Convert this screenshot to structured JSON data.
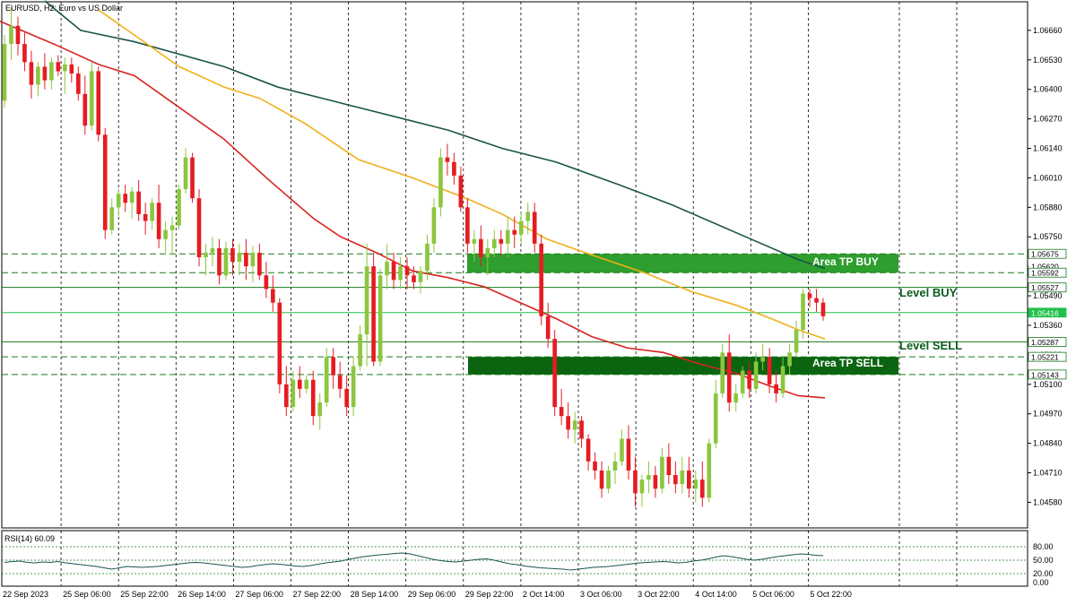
{
  "chart_data": {
    "type": "candlestick",
    "title": "EURUSD, H2:  Euro vs US Dollar",
    "y_ticks": [
      "1.06660",
      "1.06530",
      "1.06400",
      "1.06270",
      "1.06140",
      "1.06010",
      "1.05880",
      "1.05750",
      "1.05620",
      "1.05490",
      "1.05360",
      "1.05230",
      "1.05100",
      "1.04970",
      "1.04840",
      "1.04710",
      "1.04580"
    ],
    "y_tick_values": [
      1.0666,
      1.0653,
      1.064,
      1.0627,
      1.0614,
      1.0601,
      1.0588,
      1.0575,
      1.0562,
      1.0549,
      1.0536,
      1.0523,
      1.051,
      1.0497,
      1.0484,
      1.0471,
      1.0458
    ],
    "ylim": [
      1.04467,
      1.06786
    ],
    "x_ticks": [
      "22 Sep 2023",
      "25 Sep 06:00",
      "25 Sep 22:00",
      "26 Sep 14:00",
      "27 Sep 06:00",
      "27 Sep 22:00",
      "28 Sep 14:00",
      "29 Sep 06:00",
      "29 Sep 22:00",
      "2 Oct 14:00",
      "3 Oct 06:00",
      "3 Oct 22:00",
      "4 Oct 14:00",
      "5 Oct 06:00",
      "5 Oct 22:00"
    ],
    "price_levels": [
      {
        "label": "1.05675",
        "value": 1.05675,
        "style": "dashed",
        "color": "#1a7a1a"
      },
      {
        "label": "1.05620",
        "value": 1.0562,
        "style": "none",
        "color": "#1a7a1a"
      },
      {
        "label": "1.05592",
        "value": 1.05592,
        "style": "dashed",
        "color": "#1a7a1a"
      },
      {
        "label": "1.05527",
        "value": 1.05527,
        "style": "solid",
        "color": "#1a7a1a"
      },
      {
        "label": "1.05416",
        "value": 1.05416,
        "style": "solid",
        "color": "#21c24a"
      },
      {
        "label": "1.05287",
        "value": 1.05287,
        "style": "solid",
        "color": "#1a7a1a"
      },
      {
        "label": "1.05221",
        "value": 1.05221,
        "style": "dashed",
        "color": "#1a7a1a"
      },
      {
        "label": "1.05143",
        "value": 1.05143,
        "style": "dashed",
        "color": "#1a7a1a"
      }
    ],
    "zones": [
      {
        "label": "Area TP BUY",
        "top": 1.05675,
        "bottom": 1.05592,
        "color": "#2e9e2e"
      },
      {
        "label": "Area TP SELL",
        "top": 1.05221,
        "bottom": 1.05143,
        "color": "#0a6410"
      }
    ],
    "level_labels": [
      {
        "label": "Level BUY",
        "value": 1.05527
      },
      {
        "label": "Level SELL",
        "value": 1.05287
      }
    ],
    "candles": [
      [
        1.0635,
        1.0664,
        1.0632,
        1.066
      ],
      [
        1.066,
        1.0676,
        1.0653,
        1.0668
      ],
      [
        1.0668,
        1.0672,
        1.0655,
        1.066
      ],
      [
        1.066,
        1.0665,
        1.0648,
        1.0652
      ],
      [
        1.0652,
        1.0657,
        1.0636,
        1.0642
      ],
      [
        1.0642,
        1.0652,
        1.0637,
        1.065
      ],
      [
        1.065,
        1.0656,
        1.064,
        1.0644
      ],
      [
        1.0644,
        1.0654,
        1.064,
        1.0652
      ],
      [
        1.0652,
        1.0655,
        1.0646,
        1.0648
      ],
      [
        1.0648,
        1.0654,
        1.0638,
        1.0651
      ],
      [
        1.0651,
        1.0654,
        1.0643,
        1.0647
      ],
      [
        1.0647,
        1.065,
        1.0635,
        1.0638
      ],
      [
        1.0638,
        1.0646,
        1.062,
        1.0624
      ],
      [
        1.0624,
        1.0652,
        1.0622,
        1.0648
      ],
      [
        1.0648,
        1.065,
        1.0617,
        1.062
      ],
      [
        1.062,
        1.0623,
        1.0574,
        1.0578
      ],
      [
        1.0578,
        1.0592,
        1.0576,
        1.0588
      ],
      [
        1.0588,
        1.0596,
        1.0584,
        1.0594
      ],
      [
        1.0594,
        1.0598,
        1.0586,
        1.059
      ],
      [
        1.059,
        1.0597,
        1.0583,
        1.0595
      ],
      [
        1.0595,
        1.06,
        1.0582,
        1.0585
      ],
      [
        1.0585,
        1.059,
        1.0576,
        1.0582
      ],
      [
        1.0582,
        1.0592,
        1.0578,
        1.059
      ],
      [
        1.059,
        1.0598,
        1.057,
        1.0574
      ],
      [
        1.0574,
        1.0582,
        1.0568,
        1.0578
      ],
      [
        1.0578,
        1.0584,
        1.0567,
        1.058
      ],
      [
        1.058,
        1.0598,
        1.0578,
        1.0596
      ],
      [
        1.0596,
        1.0614,
        1.0594,
        1.061
      ],
      [
        1.061,
        1.0612,
        1.059,
        1.0592
      ],
      [
        1.0592,
        1.0596,
        1.0562,
        1.0566
      ],
      [
        1.0566,
        1.0572,
        1.0558,
        1.0568
      ],
      [
        1.0568,
        1.0575,
        1.0562,
        1.057
      ],
      [
        1.057,
        1.0574,
        1.0554,
        1.0558
      ],
      [
        1.0558,
        1.0573,
        1.0556,
        1.057
      ],
      [
        1.057,
        1.0574,
        1.0558,
        1.0564
      ],
      [
        1.0564,
        1.0572,
        1.0558,
        1.0568
      ],
      [
        1.0568,
        1.0574,
        1.0556,
        1.0562
      ],
      [
        1.0562,
        1.0571,
        1.0555,
        1.0568
      ],
      [
        1.0568,
        1.0572,
        1.0556,
        1.0558
      ],
      [
        1.0558,
        1.0564,
        1.0548,
        1.0552
      ],
      [
        1.0552,
        1.0558,
        1.0542,
        1.0546
      ],
      [
        1.0546,
        1.0548,
        1.0506,
        1.051
      ],
      [
        1.051,
        1.0518,
        1.0496,
        1.05
      ],
      [
        1.05,
        1.0516,
        1.0498,
        1.0512
      ],
      [
        1.0512,
        1.0518,
        1.0504,
        1.0508
      ],
      [
        1.0508,
        1.0514,
        1.0506,
        1.0512
      ],
      [
        1.0512,
        1.0516,
        1.0492,
        1.0496
      ],
      [
        1.0496,
        1.0506,
        1.049,
        1.0502
      ],
      [
        1.0502,
        1.0526,
        1.05,
        1.0522
      ],
      [
        1.0522,
        1.0526,
        1.0508,
        1.0514
      ],
      [
        1.0514,
        1.052,
        1.0504,
        1.0508
      ],
      [
        1.0508,
        1.0514,
        1.0496,
        1.05
      ],
      [
        1.05,
        1.0522,
        1.0496,
        1.0518
      ],
      [
        1.0518,
        1.0536,
        1.0516,
        1.0532
      ],
      [
        1.0532,
        1.0572,
        1.0518,
        1.0562
      ],
      [
        1.0562,
        1.0568,
        1.0518,
        1.052
      ],
      [
        1.052,
        1.0561,
        1.0518,
        1.0558
      ],
      [
        1.0558,
        1.0572,
        1.0552,
        1.0564
      ],
      [
        1.0564,
        1.0568,
        1.0552,
        1.0556
      ],
      [
        1.0556,
        1.0566,
        1.0552,
        1.0562
      ],
      [
        1.0562,
        1.0566,
        1.0552,
        1.0558
      ],
      [
        1.0558,
        1.0562,
        1.0552,
        1.0555
      ],
      [
        1.0555,
        1.0562,
        1.055,
        1.056
      ],
      [
        1.056,
        1.0576,
        1.0556,
        1.0572
      ],
      [
        1.0572,
        1.0592,
        1.0568,
        1.0588
      ],
      [
        1.0588,
        1.0614,
        1.0584,
        1.061
      ],
      [
        1.061,
        1.0616,
        1.0602,
        1.0608
      ],
      [
        1.0608,
        1.0612,
        1.0598,
        1.0602
      ],
      [
        1.0602,
        1.0606,
        1.0586,
        1.0588
      ],
      [
        1.0588,
        1.0592,
        1.0568,
        1.0572
      ],
      [
        1.0572,
        1.0578,
        1.0564,
        1.0574
      ],
      [
        1.0574,
        1.058,
        1.0562,
        1.0566
      ],
      [
        1.0566,
        1.0574,
        1.0558,
        1.057
      ],
      [
        1.057,
        1.0578,
        1.0566,
        1.0574
      ],
      [
        1.0574,
        1.0578,
        1.0566,
        1.0572
      ],
      [
        1.0572,
        1.0584,
        1.0566,
        1.0578
      ],
      [
        1.0578,
        1.0584,
        1.057,
        1.0576
      ],
      [
        1.0576,
        1.0586,
        1.0572,
        1.0582
      ],
      [
        1.0582,
        1.059,
        1.0576,
        1.0586
      ],
      [
        1.0586,
        1.059,
        1.0568,
        1.0572
      ],
      [
        1.0572,
        1.0576,
        1.0536,
        1.054
      ],
      [
        1.054,
        1.0546,
        1.0526,
        1.053
      ],
      [
        1.053,
        1.0534,
        1.0496,
        1.05
      ],
      [
        1.05,
        1.0508,
        1.0492,
        1.0496
      ],
      [
        1.0496,
        1.0502,
        1.0486,
        1.049
      ],
      [
        1.049,
        1.0498,
        1.0484,
        1.0494
      ],
      [
        1.0494,
        1.0496,
        1.0482,
        1.0486
      ],
      [
        1.0486,
        1.0488,
        1.0472,
        1.0476
      ],
      [
        1.0476,
        1.048,
        1.0468,
        1.0472
      ],
      [
        1.0472,
        1.0476,
        1.046,
        1.0464
      ],
      [
        1.0464,
        1.0474,
        1.0462,
        1.0472
      ],
      [
        1.0472,
        1.048,
        1.0466,
        1.0476
      ],
      [
        1.0476,
        1.049,
        1.0474,
        1.0486
      ],
      [
        1.0486,
        1.0492,
        1.0468,
        1.0472
      ],
      [
        1.0472,
        1.0478,
        1.0456,
        1.0462
      ],
      [
        1.0462,
        1.047,
        1.0456,
        1.0468
      ],
      [
        1.0468,
        1.0476,
        1.0462,
        1.047
      ],
      [
        1.047,
        1.0474,
        1.046,
        1.0464
      ],
      [
        1.0464,
        1.0482,
        1.0462,
        1.0478
      ],
      [
        1.0478,
        1.0484,
        1.0466,
        1.047
      ],
      [
        1.047,
        1.0476,
        1.0462,
        1.0466
      ],
      [
        1.0466,
        1.0478,
        1.0462,
        1.0472
      ],
      [
        1.0472,
        1.0478,
        1.046,
        1.0464
      ],
      [
        1.0464,
        1.0472,
        1.0458,
        1.0468
      ],
      [
        1.0468,
        1.0476,
        1.0456,
        1.046
      ],
      [
        1.046,
        1.0486,
        1.0458,
        1.0484
      ],
      [
        1.0484,
        1.0512,
        1.0482,
        1.0506
      ],
      [
        1.0506,
        1.0528,
        1.0504,
        1.0524
      ],
      [
        1.0524,
        1.0532,
        1.0498,
        1.0502
      ],
      [
        1.0502,
        1.051,
        1.0498,
        1.0506
      ],
      [
        1.0506,
        1.0518,
        1.0504,
        1.0516
      ],
      [
        1.0516,
        1.052,
        1.0504,
        1.0508
      ],
      [
        1.0508,
        1.0524,
        1.0506,
        1.052
      ],
      [
        1.052,
        1.0528,
        1.0516,
        1.0522
      ],
      [
        1.0522,
        1.0526,
        1.0506,
        1.051
      ],
      [
        1.051,
        1.0516,
        1.0502,
        1.0506
      ],
      [
        1.0506,
        1.0522,
        1.0504,
        1.0518
      ],
      [
        1.0518,
        1.0528,
        1.0514,
        1.0524
      ],
      [
        1.0524,
        1.0538,
        1.0522,
        1.0534
      ],
      [
        1.0534,
        1.0552,
        1.053,
        1.055
      ],
      [
        1.055,
        1.0552,
        1.0544,
        1.0548
      ],
      [
        1.0548,
        1.0552,
        1.0542,
        1.0546
      ],
      [
        1.0546,
        1.0548,
        1.0538,
        1.054
      ]
    ],
    "ma_series": [
      {
        "name": "MA slow",
        "color": "#1a5548",
        "values": [
          [
            50,
            1.0679
          ],
          [
            90,
            1.0666
          ],
          [
            150,
            1.0661
          ],
          [
            250,
            1.065
          ],
          [
            310,
            1.0641
          ],
          [
            380,
            1.0634
          ],
          [
            440,
            1.0628
          ],
          [
            500,
            1.0622
          ],
          [
            560,
            1.0614
          ],
          [
            620,
            1.0608
          ],
          [
            690,
            1.0598
          ],
          [
            750,
            1.0589
          ],
          [
            820,
            1.0577
          ],
          [
            890,
            1.0565
          ],
          [
            920,
            1.0561
          ]
        ]
      },
      {
        "name": "MA medium",
        "color": "#f0b018",
        "values": [
          [
            110,
            1.0675
          ],
          [
            200,
            1.065
          ],
          [
            250,
            1.0641
          ],
          [
            290,
            1.0636
          ],
          [
            340,
            1.0625
          ],
          [
            400,
            1.0609
          ],
          [
            460,
            1.0601
          ],
          [
            520,
            1.0592
          ],
          [
            560,
            1.0585
          ],
          [
            610,
            1.0574
          ],
          [
            660,
            1.0567
          ],
          [
            720,
            1.0559
          ],
          [
            770,
            1.0551
          ],
          [
            820,
            1.0545
          ],
          [
            860,
            1.0539
          ],
          [
            890,
            1.0534
          ],
          [
            920,
            1.053
          ]
        ]
      },
      {
        "name": "MA fast",
        "color": "#d9231f",
        "values": [
          [
            0,
            1.067
          ],
          [
            60,
            1.066
          ],
          [
            110,
            1.0651
          ],
          [
            150,
            1.0646
          ],
          [
            200,
            1.0632
          ],
          [
            250,
            1.0618
          ],
          [
            300,
            1.06
          ],
          [
            350,
            1.0583
          ],
          [
            380,
            1.0575
          ],
          [
            420,
            1.0568
          ],
          [
            460,
            1.056
          ],
          [
            500,
            1.0557
          ],
          [
            540,
            1.0553
          ],
          [
            580,
            1.0546
          ],
          [
            620,
            1.0539
          ],
          [
            660,
            1.0531
          ],
          [
            700,
            1.0526
          ],
          [
            740,
            1.0524
          ],
          [
            780,
            1.0519
          ],
          [
            820,
            1.0515
          ],
          [
            860,
            1.0509
          ],
          [
            890,
            1.0505
          ],
          [
            920,
            1.0504
          ]
        ]
      }
    ],
    "rsi": {
      "label": "RSI(14) 60.09",
      "ticks": [
        "80.00",
        "50.00",
        "20.00",
        "0.00"
      ],
      "tick_values": [
        80,
        50,
        20,
        0
      ],
      "values": [
        45,
        47,
        48,
        45,
        44,
        46,
        45,
        47,
        44,
        42,
        40,
        38,
        36,
        33,
        30,
        33,
        36,
        35,
        34,
        35,
        36,
        38,
        40,
        42,
        44,
        45,
        44,
        42,
        40,
        38,
        36,
        34,
        35,
        38,
        40,
        42,
        41,
        39,
        37,
        36,
        38,
        41,
        44,
        46,
        48,
        52,
        55,
        58,
        60,
        62,
        63,
        65,
        66,
        64,
        60,
        56,
        52,
        49,
        47,
        46,
        48,
        50,
        52,
        53,
        50,
        46,
        42,
        40,
        37,
        35,
        33,
        32,
        31,
        30,
        28,
        30,
        32,
        34,
        35,
        36,
        38,
        40,
        42,
        44,
        45,
        46,
        47,
        46,
        44,
        45,
        48,
        50,
        53,
        57,
        60,
        58,
        55,
        52,
        50,
        52,
        55,
        58,
        60,
        62,
        64,
        63,
        61,
        60
      ]
    },
    "colors": {
      "bull": "#8cc63f",
      "bear": "#e51c23"
    }
  },
  "labels": {
    "area_tp_buy": "Area TP BUY",
    "area_tp_sell": "Area TP SELL",
    "level_buy": "Level BUY",
    "level_sell": "Level SELL"
  }
}
